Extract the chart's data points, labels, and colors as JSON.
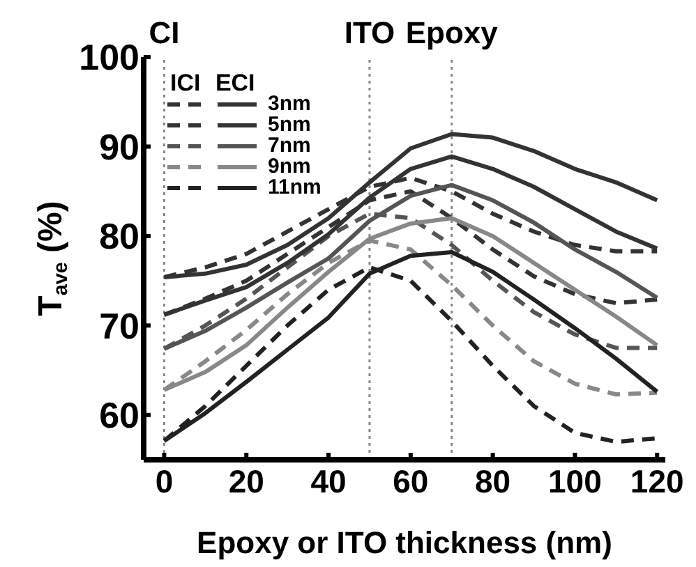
{
  "chart_data": {
    "type": "line",
    "xlabel": "Epoxy or ITO thickness (nm)",
    "ylabel": "T$_{ave}$ (%)",
    "x": [
      0,
      10,
      20,
      30,
      40,
      50,
      60,
      70,
      80,
      90,
      100,
      110,
      120
    ],
    "xlim": [
      -5,
      122
    ],
    "xticks": [
      0,
      20,
      40,
      60,
      80,
      100,
      120
    ],
    "ylim": [
      55,
      100
    ],
    "yticks": [
      60,
      70,
      80,
      90,
      100
    ],
    "grid": false,
    "legend": "top left",
    "legend_title": "ICI ECI",
    "marker": "none",
    "ref_lines": [
      {
        "axis": "x",
        "value": 0,
        "label": "CI",
        "color": "#888888",
        "line_style": "dotted"
      },
      {
        "axis": "x",
        "value": 50,
        "label": "ITO",
        "color": "#888888",
        "line_style": "dotted"
      },
      {
        "axis": "x",
        "value": 70,
        "label": "Epoxy",
        "color": "#888888",
        "line_style": "dotted"
      }
    ],
    "series": [
      {
        "color": "#333333",
        "line_style": "dashed",
        "values": [
          75.4,
          76.5,
          78,
          80.5,
          83,
          85.5,
          86.5,
          85,
          82.5,
          80.5,
          79,
          78.3,
          78.3
        ]
      },
      {
        "color": "#333333",
        "line_style": "dashed",
        "values": [
          71.2,
          73,
          75,
          78,
          81,
          84,
          85,
          82,
          78.5,
          75.5,
          73.5,
          72.5,
          72.9
        ]
      },
      {
        "color": "#555555",
        "line_style": "dashed",
        "values": [
          67.4,
          70,
          73,
          76.5,
          80,
          82.5,
          82,
          79,
          75,
          71.5,
          69,
          67.5,
          67.5
        ]
      },
      {
        "color": "#888888",
        "line_style": "dashed",
        "values": [
          62.8,
          66,
          69.5,
          73.5,
          77,
          79.5,
          78.5,
          74.5,
          70,
          66,
          63.5,
          62.3,
          62.5
        ]
      },
      {
        "color": "#222222",
        "line_style": "dashed",
        "values": [
          57.1,
          61,
          65.5,
          70,
          74,
          76.5,
          75,
          70.5,
          65.5,
          61,
          58,
          57,
          57.4
        ]
      },
      {
        "name": "3nm",
        "color": "#333333",
        "line_style": "solid",
        "values": [
          75.4,
          75.8,
          76.8,
          79,
          82,
          86,
          89.8,
          91.4,
          91,
          89.5,
          87.5,
          86,
          84
        ]
      },
      {
        "name": "5nm",
        "color": "#333333",
        "line_style": "solid",
        "values": [
          71.2,
          72.8,
          74.3,
          77,
          80.2,
          84.3,
          87.5,
          88.9,
          87.5,
          85.5,
          83,
          80.5,
          78.6
        ]
      },
      {
        "name": "7nm",
        "color": "#555555",
        "line_style": "solid",
        "values": [
          67.4,
          69.4,
          72,
          74.8,
          77.5,
          81.7,
          84.5,
          85.7,
          84,
          81.5,
          78.5,
          76,
          73.1
        ]
      },
      {
        "name": "9nm",
        "color": "#888888",
        "line_style": "solid",
        "values": [
          62.8,
          64.8,
          67.8,
          72,
          76,
          79.7,
          81.4,
          82,
          80,
          77,
          74,
          71,
          67.8
        ]
      },
      {
        "name": "11nm",
        "color": "#222222",
        "line_style": "solid",
        "values": [
          57.1,
          60.2,
          63.7,
          67.3,
          70.9,
          75.8,
          77.8,
          78.2,
          76,
          72.9,
          69.7,
          66.3,
          62.6
        ]
      }
    ]
  }
}
